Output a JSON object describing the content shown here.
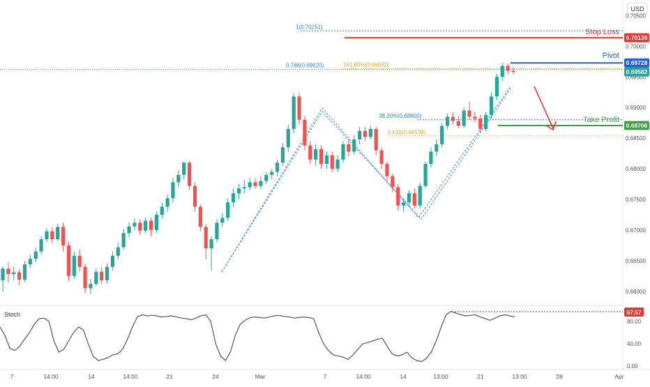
{
  "currency_button": "USD",
  "colors": {
    "up": "#26a69a",
    "down": "#ef5350",
    "stop_loss": "#e53935",
    "pivot": "#1e63d6",
    "take_profit": "#43a047",
    "fib_blue": "#2f86d6",
    "fib_orange": "#e0a52a",
    "pattern": "#2f86d6",
    "stoch_line": "#555555",
    "stoch_level": "#e53935",
    "axis_text": "#555555"
  },
  "levels": {
    "stop_loss": {
      "label": "Stop Loss",
      "price": 0.70139,
      "tag": "0.70139"
    },
    "pivot": {
      "label": "Pivot",
      "price": 0.69728,
      "tag": "0.69728"
    },
    "last_price": {
      "price": 0.69582,
      "tag": "0.69582"
    },
    "take_profit": {
      "label": "Take Profit",
      "price": 0.68706,
      "tag": "0.68706"
    }
  },
  "fib_labels": {
    "fib_1": {
      "text": "1(0.70251)",
      "price": 0.70251
    },
    "fib_0786": {
      "text": "0.786(0.69620)",
      "price": 0.6962
    },
    "ext_1618": {
      "text": "161.80%(0.69632)",
      "price": 0.69632
    },
    "ret_382": {
      "text": "38.20%(0.68800)",
      "price": 0.688
    },
    "ret_0618": {
      "text": "0.618(0.68539)",
      "price": 0.68539
    }
  },
  "stoch": {
    "title": "Stoch",
    "value_tag": "97.57",
    "value": 97.57
  },
  "chart_data": {
    "type": "candlestick",
    "ylim": [
      0.6577,
      0.70755
    ],
    "yticks": [
      "0.70500",
      "0.70000",
      "0.69500",
      "0.69000",
      "0.68500",
      "0.68000",
      "0.67500",
      "0.67000",
      "0.66500",
      "0.66000"
    ],
    "xticks": [
      "7",
      "14:00",
      "14",
      "14:00",
      "21",
      "24",
      "Mar",
      "7",
      "14:00",
      "14",
      "13:00",
      "21",
      "13:00",
      "28",
      "Apr"
    ],
    "candles": [
      [
        0.6618,
        0.6637,
        0.6599,
        0.6641
      ],
      [
        0.6637,
        0.6628,
        0.6614,
        0.6648
      ],
      [
        0.6628,
        0.6631,
        0.6618,
        0.664
      ],
      [
        0.6631,
        0.6619,
        0.661,
        0.6636
      ],
      [
        0.6619,
        0.6644,
        0.6615,
        0.6649
      ],
      [
        0.6644,
        0.6653,
        0.6638,
        0.666
      ],
      [
        0.6653,
        0.6665,
        0.6647,
        0.6672
      ],
      [
        0.6665,
        0.6685,
        0.666,
        0.669
      ],
      [
        0.6685,
        0.6698,
        0.668,
        0.6703
      ],
      [
        0.6698,
        0.6685,
        0.6678,
        0.6705
      ],
      [
        0.6685,
        0.6705,
        0.6682,
        0.671
      ],
      [
        0.6705,
        0.6675,
        0.6665,
        0.6712
      ],
      [
        0.6675,
        0.6625,
        0.6617,
        0.6681
      ],
      [
        0.6625,
        0.6658,
        0.662,
        0.6665
      ],
      [
        0.6658,
        0.664,
        0.6632,
        0.6668
      ],
      [
        0.664,
        0.6605,
        0.6597,
        0.6645
      ],
      [
        0.6605,
        0.6612,
        0.6596,
        0.662
      ],
      [
        0.6612,
        0.6632,
        0.6608,
        0.6638
      ],
      [
        0.6632,
        0.6618,
        0.6612,
        0.664
      ],
      [
        0.6618,
        0.664,
        0.6612,
        0.6646
      ],
      [
        0.664,
        0.6658,
        0.6634,
        0.6665
      ],
      [
        0.6658,
        0.6672,
        0.6652,
        0.668
      ],
      [
        0.6672,
        0.6695,
        0.6668,
        0.6702
      ],
      [
        0.6695,
        0.6706,
        0.6688,
        0.6713
      ],
      [
        0.6706,
        0.6712,
        0.67,
        0.672
      ],
      [
        0.6712,
        0.6699,
        0.6692,
        0.6718
      ],
      [
        0.6699,
        0.6715,
        0.6695,
        0.672
      ],
      [
        0.6715,
        0.67,
        0.669,
        0.672
      ],
      [
        0.67,
        0.6725,
        0.6695,
        0.673
      ],
      [
        0.6725,
        0.6738,
        0.6718,
        0.6745
      ],
      [
        0.6738,
        0.6752,
        0.673,
        0.6758
      ],
      [
        0.6752,
        0.6778,
        0.6745,
        0.6785
      ],
      [
        0.6778,
        0.679,
        0.677,
        0.6798
      ],
      [
        0.679,
        0.681,
        0.6783,
        0.6812
      ],
      [
        0.681,
        0.6772,
        0.6765,
        0.6813
      ],
      [
        0.6772,
        0.6738,
        0.673,
        0.6778
      ],
      [
        0.6738,
        0.6705,
        0.6698,
        0.6742
      ],
      [
        0.6705,
        0.667,
        0.6652,
        0.671
      ],
      [
        0.667,
        0.6685,
        0.6634,
        0.669
      ],
      [
        0.6685,
        0.6712,
        0.668,
        0.6718
      ],
      [
        0.6712,
        0.672,
        0.6705,
        0.6728
      ],
      [
        0.672,
        0.6745,
        0.6715,
        0.6752
      ],
      [
        0.6745,
        0.676,
        0.6738,
        0.6768
      ],
      [
        0.676,
        0.6768,
        0.675,
        0.6775
      ],
      [
        0.6768,
        0.677,
        0.676,
        0.6782
      ],
      [
        0.677,
        0.6778,
        0.6765,
        0.6785
      ],
      [
        0.6778,
        0.6772,
        0.6768,
        0.6785
      ],
      [
        0.6772,
        0.678,
        0.6766,
        0.6788
      ],
      [
        0.678,
        0.679,
        0.6775,
        0.6795
      ],
      [
        0.679,
        0.6795,
        0.6783,
        0.68
      ],
      [
        0.6795,
        0.681,
        0.6788,
        0.6815
      ],
      [
        0.681,
        0.6835,
        0.6805,
        0.6842
      ],
      [
        0.6835,
        0.6865,
        0.6828,
        0.6872
      ],
      [
        0.6865,
        0.6918,
        0.6858,
        0.6923
      ],
      [
        0.6918,
        0.688,
        0.6872,
        0.6924
      ],
      [
        0.688,
        0.6838,
        0.683,
        0.6886
      ],
      [
        0.6838,
        0.6815,
        0.6808,
        0.6845
      ],
      [
        0.6815,
        0.6832,
        0.6805,
        0.684
      ],
      [
        0.6832,
        0.6808,
        0.68,
        0.6838
      ],
      [
        0.6808,
        0.6822,
        0.68,
        0.6828
      ],
      [
        0.6822,
        0.68,
        0.6795,
        0.6828
      ],
      [
        0.68,
        0.6815,
        0.6795,
        0.6822
      ],
      [
        0.6815,
        0.684,
        0.681,
        0.6845
      ],
      [
        0.684,
        0.6828,
        0.682,
        0.6848
      ],
      [
        0.6828,
        0.6848,
        0.6823,
        0.6855
      ],
      [
        0.6848,
        0.6862,
        0.684,
        0.6868
      ],
      [
        0.6862,
        0.6852,
        0.6846,
        0.6868
      ],
      [
        0.6852,
        0.6865,
        0.6848,
        0.687
      ],
      [
        0.6865,
        0.683,
        0.6822,
        0.6868
      ],
      [
        0.683,
        0.6808,
        0.68,
        0.6835
      ],
      [
        0.6808,
        0.6788,
        0.678,
        0.6812
      ],
      [
        0.6788,
        0.677,
        0.6762,
        0.6792
      ],
      [
        0.677,
        0.674,
        0.6732,
        0.6775
      ],
      [
        0.674,
        0.6745,
        0.673,
        0.6752
      ],
      [
        0.6745,
        0.676,
        0.6738,
        0.6765
      ],
      [
        0.676,
        0.674,
        0.6735,
        0.6768
      ],
      [
        0.674,
        0.6772,
        0.6735,
        0.6778
      ],
      [
        0.6772,
        0.6808,
        0.6768,
        0.6812
      ],
      [
        0.6808,
        0.6828,
        0.6802,
        0.6835
      ],
      [
        0.6828,
        0.684,
        0.682,
        0.6848
      ],
      [
        0.684,
        0.687,
        0.6835,
        0.6875
      ],
      [
        0.687,
        0.6885,
        0.6865,
        0.689
      ],
      [
        0.6885,
        0.6878,
        0.6872,
        0.6892
      ],
      [
        0.6878,
        0.687,
        0.6866,
        0.6886
      ],
      [
        0.687,
        0.6895,
        0.6866,
        0.69
      ],
      [
        0.6895,
        0.6885,
        0.688,
        0.691
      ],
      [
        0.6885,
        0.6882,
        0.6876,
        0.6893
      ],
      [
        0.6882,
        0.6865,
        0.686,
        0.6888
      ],
      [
        0.6865,
        0.6888,
        0.6862,
        0.6893
      ],
      [
        0.6888,
        0.6918,
        0.6882,
        0.6925
      ],
      [
        0.6918,
        0.695,
        0.6912,
        0.6955
      ],
      [
        0.695,
        0.6968,
        0.6943,
        0.6973
      ],
      [
        0.6968,
        0.696,
        0.6954,
        0.6972
      ],
      [
        0.696,
        0.6958,
        0.6954,
        0.6966
      ]
    ],
    "annotations": [
      "Stop Loss",
      "Pivot",
      "Take Profit"
    ]
  }
}
